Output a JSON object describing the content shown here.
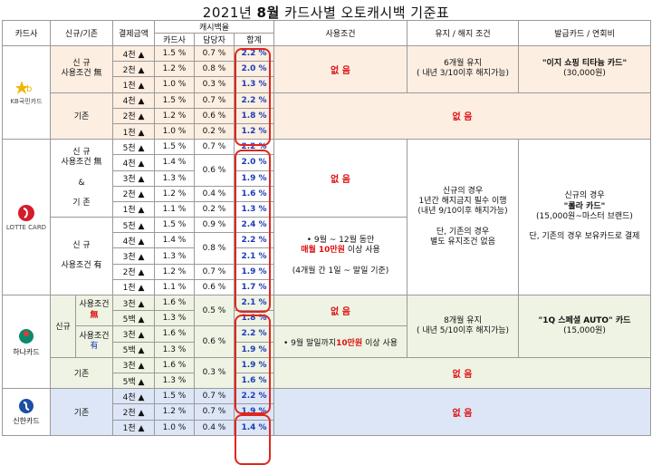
{
  "title_prefix": "2021년 ",
  "title_month": "8월",
  "title_suffix": " 카드사별 오토캐시백 기준표",
  "headers": {
    "card_company": "카드사",
    "new_existing": "신규/기존",
    "payment_amount": "결제금액",
    "cashback": "캐시백율",
    "card_company_share": "카드사",
    "agent_share": "담당자",
    "total": "합계",
    "usage_condition": "사용조건",
    "maintain_cancel": "유지 / 해지 조건",
    "issued_card": "발급카드 / 연회비"
  },
  "kb": {
    "logo_text": "KB국민카드",
    "new_label_1": "신 규",
    "new_label_2": "사용조건 無",
    "existing_label": "기존",
    "rows": [
      {
        "amt": "4천 ▲",
        "card": "1.5 %",
        "agent": "0.7 %",
        "total": "2.2 %"
      },
      {
        "amt": "2천 ▲",
        "card": "1.2 %",
        "agent": "0.8 %",
        "total": "2.0 %"
      },
      {
        "amt": "1천 ▲",
        "card": "1.0 %",
        "agent": "0.3 %",
        "total": "1.3 %"
      },
      {
        "amt": "4천 ▲",
        "card": "1.5 %",
        "agent": "0.7 %",
        "total": "2.2 %"
      },
      {
        "amt": "2천 ▲",
        "card": "1.2 %",
        "agent": "0.6 %",
        "total": "1.8 %"
      },
      {
        "amt": "1천 ▲",
        "card": "1.0 %",
        "agent": "0.2 %",
        "total": "1.2 %"
      }
    ],
    "usage_none": "없 음",
    "maintain_1": "6개월 유지",
    "maintain_2": "( 내년 3/10이후 해지가능)",
    "card_1": "\"이지 쇼핑 티타늄 카드\"",
    "card_2": "(30,000원)",
    "existing_none": "없 음"
  },
  "lotte": {
    "logo_text": "LOTTE CARD",
    "new_none_1": "신 규",
    "new_none_2": "사용조건 無",
    "amp": "&",
    "existing": "기 존",
    "new_yes_1": "신 규",
    "new_yes_2": "사용조건 有",
    "rows": [
      {
        "amt": "5천 ▲",
        "card": "1.5 %",
        "agent": "0.7 %",
        "total": "2.2 %"
      },
      {
        "amt": "4천 ▲",
        "card": "1.4 %",
        "agent": "",
        "total": "2.0 %"
      },
      {
        "amt": "3천 ▲",
        "card": "1.3 %",
        "agent": "0.6 %",
        "total": "1.9 %"
      },
      {
        "amt": "2천 ▲",
        "card": "1.2 %",
        "agent": "0.4 %",
        "total": "1.6 %"
      },
      {
        "amt": "1천 ▲",
        "card": "1.1 %",
        "agent": "0.2 %",
        "total": "1.3 %"
      },
      {
        "amt": "5천 ▲",
        "card": "1.5 %",
        "agent": "0.9 %",
        "total": "2.4 %"
      },
      {
        "amt": "4천 ▲",
        "card": "1.4 %",
        "agent": "",
        "total": "2.2 %"
      },
      {
        "amt": "3천 ▲",
        "card": "1.3 %",
        "agent": "0.8 %",
        "total": "2.1 %"
      },
      {
        "amt": "2천 ▲",
        "card": "1.2 %",
        "agent": "0.7 %",
        "total": "1.9 %"
      },
      {
        "amt": "1천 ▲",
        "card": "1.1 %",
        "agent": "0.6 %",
        "total": "1.7 %"
      }
    ],
    "usage_none": "없 음",
    "usage_1_pre": "• 9월 ~ 12월 동안",
    "usage_2_red": "매월 10만원",
    "usage_2_post": " 이상 사용",
    "usage_3": "(4개월 간 1일 ~ 말일 기준)",
    "maintain_1": "신규의 경우",
    "maintain_2": "1년간 해지금지 필수 이행",
    "maintain_3": "(내년 9/10이후 해지가능)",
    "maintain_4": "단, 기존의 경우",
    "maintain_5": "별도 유지조건 없음",
    "card_1": "신규의 경우",
    "card_2": "\"롤라 카드\"",
    "card_3": "(15,000원~마스터 브랜드)",
    "card_4": "단, 기존의 경우 보유카드로 결제"
  },
  "hana": {
    "logo_text": "하나카드",
    "new_label": "신규",
    "none_1": "사용조건",
    "none_2": "無",
    "yes_1": "사용조건",
    "yes_2": "有",
    "existing_label": "기존",
    "rows": [
      {
        "amt": "3천 ▲",
        "card": "1.6 %",
        "agent": "0.5 %",
        "total": "2.1 %"
      },
      {
        "amt": "5백 ▲",
        "card": "1.3 %",
        "agent": "",
        "total": "1.8 %"
      },
      {
        "amt": "3천 ▲",
        "card": "1.6 %",
        "agent": "0.6 %",
        "total": "2.2 %"
      },
      {
        "amt": "5백 ▲",
        "card": "1.3 %",
        "agent": "",
        "total": "1.9 %"
      },
      {
        "amt": "3천 ▲",
        "card": "1.6 %",
        "agent": "0.3 %",
        "total": "1.9 %"
      },
      {
        "amt": "5백 ▲",
        "card": "1.3 %",
        "agent": "",
        "total": "1.6 %"
      }
    ],
    "usage_none": "없 음",
    "usage_pre": "• 9월 말일까지",
    "usage_red": "10만원",
    "usage_post": " 이상 사용",
    "maintain_1": "8개월 유지",
    "maintain_2": "( 내년 5/10이후 해지가능)",
    "card_1": "\"1Q 스페셜 AUTO\" 카드",
    "card_2": "(15,000원)",
    "existing_none": "없 음"
  },
  "shinhan": {
    "logo_text": "신한카드",
    "existing_label": "기존",
    "rows": [
      {
        "amt": "4천 ▲",
        "card": "1.5 %",
        "agent": "0.7 %",
        "total": "2.2 %"
      },
      {
        "amt": "2천 ▲",
        "card": "1.2 %",
        "agent": "0.7 %",
        "total": "1.9 %"
      },
      {
        "amt": "1천 ▲",
        "card": "1.0 %",
        "agent": "0.4 %",
        "total": "1.4 %"
      }
    ],
    "none": "없 음"
  },
  "colors": {
    "accent_red": "#d11",
    "percent_blue": "#1a3db5",
    "kb_bg": "#fdeee2",
    "hana_bg": "#eef3e4",
    "shinhan_bg": "#dde6f7"
  }
}
